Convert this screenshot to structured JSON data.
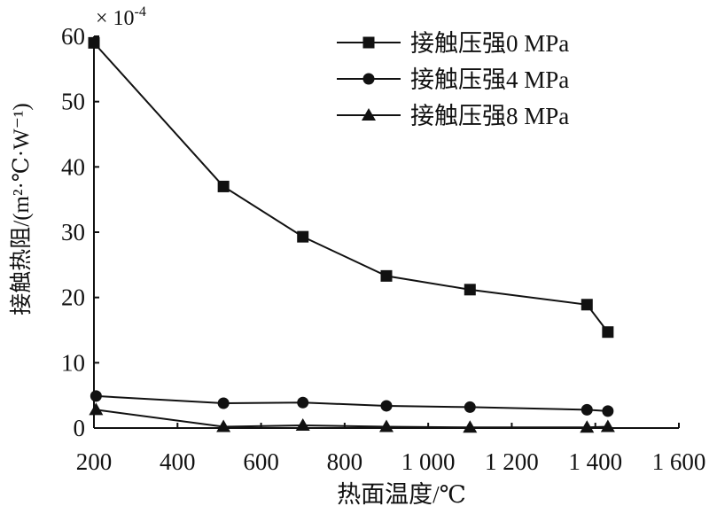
{
  "chart_data": {
    "type": "line",
    "xlabel": "热面温度/℃",
    "ylabel": "接触热阻/(m²·℃·W⁻¹)",
    "scale_note": "× 10^-4",
    "xlim": [
      200,
      1600
    ],
    "ylim": [
      0,
      60
    ],
    "x_ticks": [
      200,
      400,
      600,
      800,
      1000,
      1200,
      1400,
      1600
    ],
    "x_tick_labels": [
      "200",
      "400",
      "600",
      "800",
      "1 000",
      "1 200",
      "1 400",
      "1 600"
    ],
    "y_ticks": [
      0,
      10,
      20,
      30,
      40,
      50,
      60
    ],
    "y_tick_labels": [
      "0",
      "10",
      "20",
      "30",
      "40",
      "50",
      "60"
    ],
    "legend_position": "top-right",
    "series": [
      {
        "name": "接触压强0 MPa",
        "marker": "square",
        "x": [
          200,
          510,
          700,
          900,
          1100,
          1380,
          1430
        ],
        "y": [
          59,
          37,
          29.3,
          23.3,
          21.2,
          18.9,
          14.7
        ]
      },
      {
        "name": "接触压强4 MPa",
        "marker": "circle",
        "x": [
          205,
          510,
          700,
          900,
          1100,
          1380,
          1430
        ],
        "y": [
          4.9,
          3.8,
          3.9,
          3.4,
          3.2,
          2.8,
          2.6
        ]
      },
      {
        "name": "接触压强8 MPa",
        "marker": "triangle",
        "x": [
          205,
          510,
          700,
          900,
          1100,
          1380,
          1430
        ],
        "y": [
          2.8,
          0.2,
          0.4,
          0.2,
          0.1,
          0.1,
          0.2
        ]
      }
    ]
  }
}
